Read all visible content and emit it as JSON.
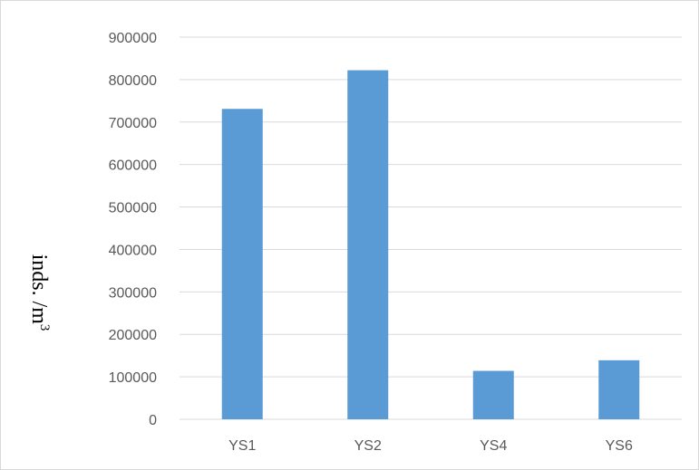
{
  "chart_data": {
    "type": "bar",
    "title": "",
    "xlabel": "",
    "ylabel": "inds. /m",
    "ylabel_superscript": "3",
    "categories": [
      "YS1",
      "YS2",
      "YS4",
      "YS6"
    ],
    "values": [
      731000,
      822000,
      114000,
      139000
    ],
    "ylim": [
      0,
      900000
    ],
    "yticks": [
      "0",
      "100000",
      "200000",
      "300000",
      "400000",
      "500000",
      "600000",
      "700000",
      "800000",
      "900000"
    ],
    "grid": true,
    "legend": "none",
    "colors": {
      "bar": "#5b9bd5",
      "grid": "#d9d9d9",
      "tick_text": "#595959"
    }
  }
}
